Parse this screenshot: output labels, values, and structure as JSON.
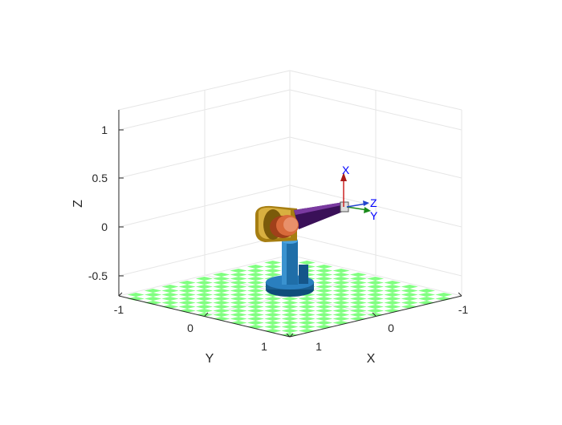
{
  "figure": {
    "axes": {
      "z_label": "Z",
      "x_label": "X",
      "y_label": "Y",
      "z_ticks": [
        "1",
        "0.5",
        "0",
        "-0.5"
      ],
      "x_ticks": [
        "-1",
        "0",
        "1"
      ],
      "y_ticks": [
        "-1",
        "0",
        "1"
      ],
      "grid": true
    },
    "frame_labels": {
      "x": "X",
      "y": "Y",
      "z": "Z"
    }
  },
  "colors": {
    "floor_tile": "#80ff80",
    "grid": "#e6e6e6",
    "axis": "#262626",
    "frame_label": "#0000ff",
    "frame_x_arrow": "#cc2222",
    "frame_y_arrow": "#1a8a1a",
    "frame_z_arrow": "#2244cc",
    "base": "#1f6ea8",
    "shoulder": "#c8a028",
    "elbow": "#d86a3a",
    "forearm": "#4a1a6a"
  }
}
